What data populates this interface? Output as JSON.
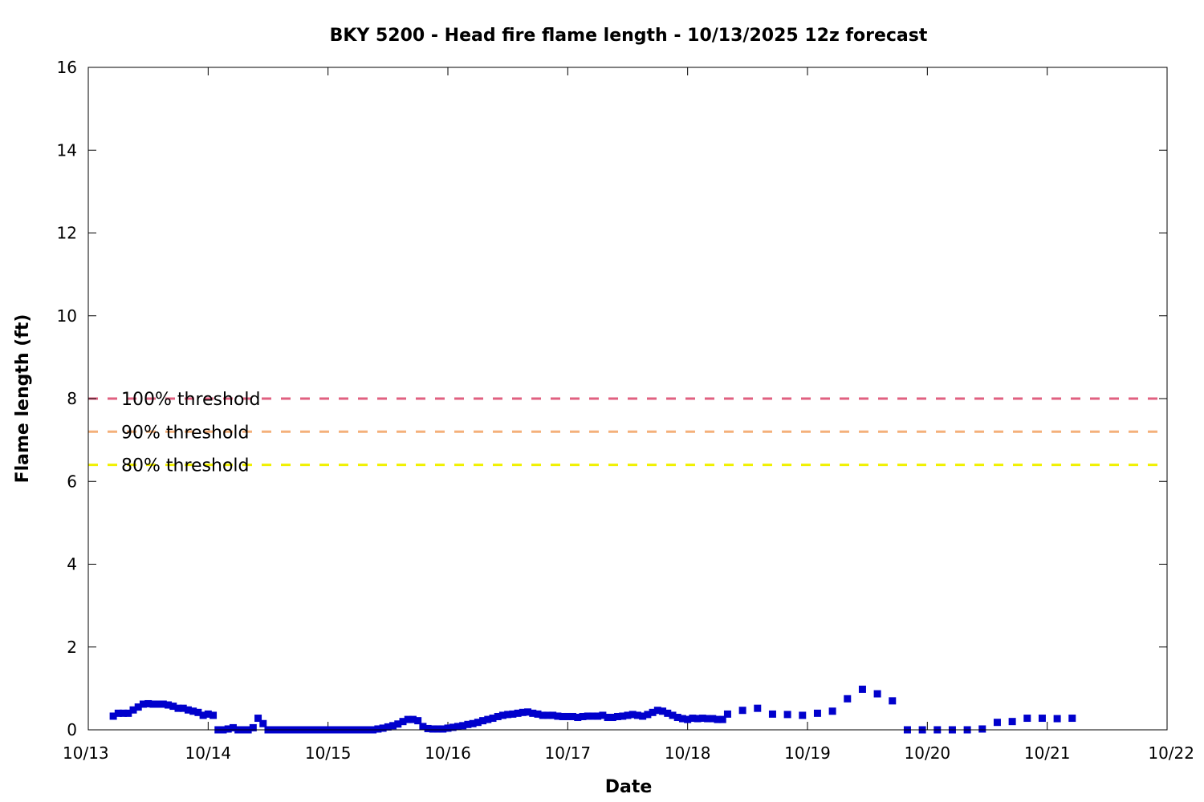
{
  "chart_data": {
    "type": "scatter",
    "title": "BKY 5200 - Head fire flame length - 10/13/2025 12z forecast",
    "xlabel": "Date",
    "ylabel": "Flame length (ft)",
    "xlim": [
      "10/13",
      "10/22"
    ],
    "ylim": [
      0,
      16
    ],
    "x_ticks": [
      "10/13",
      "10/14",
      "10/15",
      "10/16",
      "10/17",
      "10/18",
      "10/19",
      "10/20",
      "10/21",
      "10/22"
    ],
    "y_ticks": [
      0,
      2,
      4,
      6,
      8,
      10,
      12,
      14,
      16
    ],
    "grid": false,
    "thresholds": [
      {
        "label": "100% threshold",
        "value": 8.0,
        "color": "#e06080"
      },
      {
        "label": "90% threshold",
        "value": 7.2,
        "color": "#f4b07a"
      },
      {
        "label": "80% threshold",
        "value": 6.4,
        "color": "#f0f000"
      }
    ],
    "series": [
      {
        "color": "#0000cc",
        "points": [
          [
            "10/13 05:00",
            0.33
          ],
          [
            "10/13 06:00",
            0.4
          ],
          [
            "10/13 07:00",
            0.4
          ],
          [
            "10/13 08:00",
            0.4
          ],
          [
            "10/13 09:00",
            0.48
          ],
          [
            "10/13 10:00",
            0.55
          ],
          [
            "10/13 11:00",
            0.62
          ],
          [
            "10/13 12:00",
            0.63
          ],
          [
            "10/13 13:00",
            0.62
          ],
          [
            "10/13 14:00",
            0.62
          ],
          [
            "10/13 15:00",
            0.62
          ],
          [
            "10/13 16:00",
            0.6
          ],
          [
            "10/13 17:00",
            0.57
          ],
          [
            "10/13 18:00",
            0.52
          ],
          [
            "10/13 19:00",
            0.52
          ],
          [
            "10/13 20:00",
            0.48
          ],
          [
            "10/13 21:00",
            0.45
          ],
          [
            "10/13 22:00",
            0.42
          ],
          [
            "10/13 23:00",
            0.35
          ],
          [
            "10/14 00:00",
            0.38
          ],
          [
            "10/14 01:00",
            0.35
          ],
          [
            "10/14 02:00",
            0.0
          ],
          [
            "10/14 03:00",
            0.0
          ],
          [
            "10/14 04:00",
            0.02
          ],
          [
            "10/14 05:00",
            0.05
          ],
          [
            "10/14 06:00",
            0.0
          ],
          [
            "10/14 07:00",
            0.0
          ],
          [
            "10/14 08:00",
            0.0
          ],
          [
            "10/14 09:00",
            0.05
          ],
          [
            "10/14 10:00",
            0.28
          ],
          [
            "10/14 11:00",
            0.15
          ],
          [
            "10/14 12:00",
            0.0
          ],
          [
            "10/14 13:00",
            0.0
          ],
          [
            "10/14 14:00",
            0.0
          ],
          [
            "10/14 15:00",
            0.0
          ],
          [
            "10/14 16:00",
            0.0
          ],
          [
            "10/14 17:00",
            0.0
          ],
          [
            "10/14 18:00",
            0.0
          ],
          [
            "10/14 19:00",
            0.0
          ],
          [
            "10/14 20:00",
            0.0
          ],
          [
            "10/14 21:00",
            0.0
          ],
          [
            "10/14 22:00",
            0.0
          ],
          [
            "10/14 23:00",
            0.0
          ],
          [
            "10/15 00:00",
            0.0
          ],
          [
            "10/15 01:00",
            0.0
          ],
          [
            "10/15 02:00",
            0.0
          ],
          [
            "10/15 03:00",
            0.0
          ],
          [
            "10/15 04:00",
            0.0
          ],
          [
            "10/15 05:00",
            0.0
          ],
          [
            "10/15 06:00",
            0.0
          ],
          [
            "10/15 07:00",
            0.0
          ],
          [
            "10/15 08:00",
            0.0
          ],
          [
            "10/15 09:00",
            0.0
          ],
          [
            "10/15 10:00",
            0.02
          ],
          [
            "10/15 11:00",
            0.04
          ],
          [
            "10/15 12:00",
            0.07
          ],
          [
            "10/15 13:00",
            0.1
          ],
          [
            "10/15 14:00",
            0.14
          ],
          [
            "10/15 15:00",
            0.2
          ],
          [
            "10/15 16:00",
            0.25
          ],
          [
            "10/15 17:00",
            0.25
          ],
          [
            "10/15 18:00",
            0.22
          ],
          [
            "10/15 19:00",
            0.08
          ],
          [
            "10/15 20:00",
            0.03
          ],
          [
            "10/15 21:00",
            0.02
          ],
          [
            "10/15 22:00",
            0.02
          ],
          [
            "10/15 23:00",
            0.02
          ],
          [
            "10/16 00:00",
            0.04
          ],
          [
            "10/16 01:00",
            0.06
          ],
          [
            "10/16 02:00",
            0.08
          ],
          [
            "10/16 03:00",
            0.1
          ],
          [
            "10/16 04:00",
            0.13
          ],
          [
            "10/16 05:00",
            0.15
          ],
          [
            "10/16 06:00",
            0.18
          ],
          [
            "10/16 07:00",
            0.22
          ],
          [
            "10/16 08:00",
            0.25
          ],
          [
            "10/16 09:00",
            0.28
          ],
          [
            "10/16 10:00",
            0.32
          ],
          [
            "10/16 11:00",
            0.35
          ],
          [
            "10/16 12:00",
            0.37
          ],
          [
            "10/16 13:00",
            0.38
          ],
          [
            "10/16 14:00",
            0.4
          ],
          [
            "10/16 15:00",
            0.42
          ],
          [
            "10/16 16:00",
            0.43
          ],
          [
            "10/16 17:00",
            0.4
          ],
          [
            "10/16 18:00",
            0.38
          ],
          [
            "10/16 19:00",
            0.35
          ],
          [
            "10/16 20:00",
            0.35
          ],
          [
            "10/16 21:00",
            0.35
          ],
          [
            "10/16 22:00",
            0.33
          ],
          [
            "10/16 23:00",
            0.32
          ],
          [
            "10/17 00:00",
            0.32
          ],
          [
            "10/17 01:00",
            0.32
          ],
          [
            "10/17 02:00",
            0.3
          ],
          [
            "10/17 03:00",
            0.32
          ],
          [
            "10/17 04:00",
            0.33
          ],
          [
            "10/17 05:00",
            0.33
          ],
          [
            "10/17 06:00",
            0.33
          ],
          [
            "10/17 07:00",
            0.35
          ],
          [
            "10/17 08:00",
            0.3
          ],
          [
            "10/17 09:00",
            0.3
          ],
          [
            "10/17 10:00",
            0.32
          ],
          [
            "10/17 11:00",
            0.33
          ],
          [
            "10/17 12:00",
            0.35
          ],
          [
            "10/17 13:00",
            0.37
          ],
          [
            "10/17 14:00",
            0.35
          ],
          [
            "10/17 15:00",
            0.33
          ],
          [
            "10/17 16:00",
            0.37
          ],
          [
            "10/17 17:00",
            0.42
          ],
          [
            "10/17 18:00",
            0.47
          ],
          [
            "10/17 19:00",
            0.45
          ],
          [
            "10/17 20:00",
            0.4
          ],
          [
            "10/17 21:00",
            0.35
          ],
          [
            "10/17 22:00",
            0.3
          ],
          [
            "10/17 23:00",
            0.27
          ],
          [
            "10/18 00:00",
            0.25
          ],
          [
            "10/18 01:00",
            0.28
          ],
          [
            "10/18 02:00",
            0.27
          ],
          [
            "10/18 03:00",
            0.28
          ],
          [
            "10/18 04:00",
            0.27
          ],
          [
            "10/18 05:00",
            0.27
          ],
          [
            "10/18 06:00",
            0.25
          ],
          [
            "10/18 07:00",
            0.25
          ],
          [
            "10/18 08:00",
            0.38
          ],
          [
            "10/18 11:00",
            0.47
          ],
          [
            "10/18 14:00",
            0.52
          ],
          [
            "10/18 17:00",
            0.38
          ],
          [
            "10/18 20:00",
            0.37
          ],
          [
            "10/18 23:00",
            0.35
          ],
          [
            "10/19 02:00",
            0.4
          ],
          [
            "10/19 05:00",
            0.45
          ],
          [
            "10/19 08:00",
            0.75
          ],
          [
            "10/19 11:00",
            0.98
          ],
          [
            "10/19 14:00",
            0.87
          ],
          [
            "10/19 17:00",
            0.7
          ],
          [
            "10/19 20:00",
            0.0
          ],
          [
            "10/19 23:00",
            0.0
          ],
          [
            "10/20 02:00",
            0.0
          ],
          [
            "10/20 05:00",
            0.0
          ],
          [
            "10/20 08:00",
            0.0
          ],
          [
            "10/20 11:00",
            0.02
          ],
          [
            "10/20 14:00",
            0.18
          ],
          [
            "10/20 17:00",
            0.2
          ],
          [
            "10/20 20:00",
            0.28
          ],
          [
            "10/20 23:00",
            0.28
          ],
          [
            "10/21 02:00",
            0.27
          ],
          [
            "10/21 05:00",
            0.28
          ]
        ]
      }
    ]
  }
}
